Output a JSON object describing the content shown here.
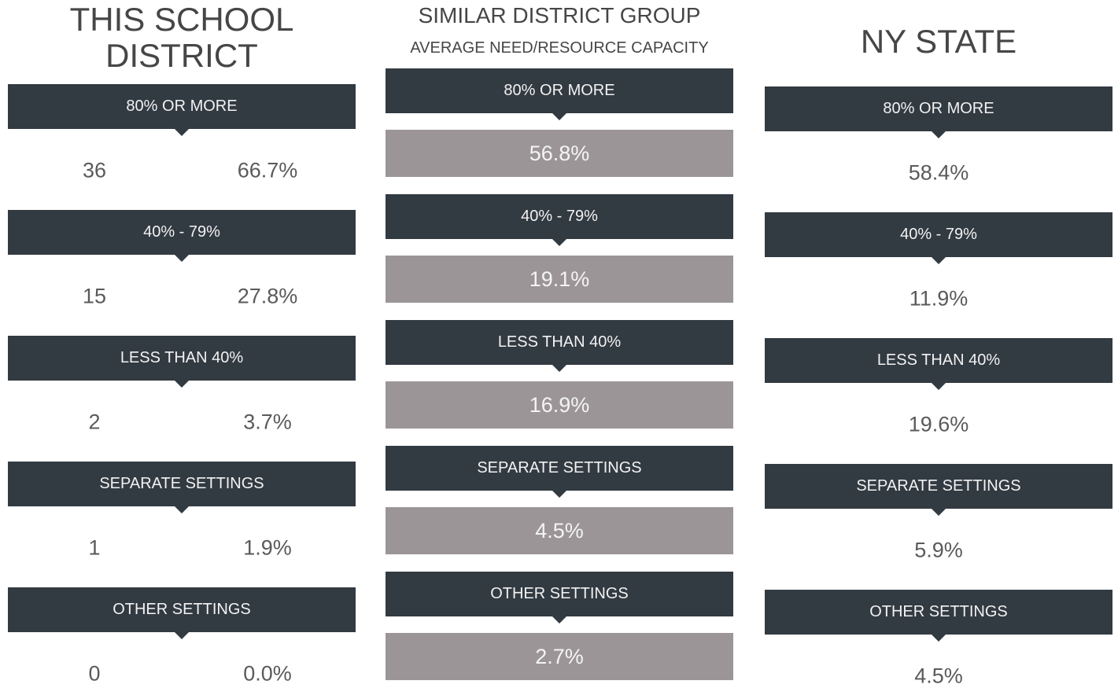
{
  "columns": [
    {
      "title": "THIS SCHOOL DISTRICT",
      "rows": [
        {
          "label": "80% OR MORE",
          "count": "36",
          "percent": "66.7%"
        },
        {
          "label": "40% - 79%",
          "count": "15",
          "percent": "27.8%"
        },
        {
          "label": "LESS THAN 40%",
          "count": "2",
          "percent": "3.7%"
        },
        {
          "label": "SEPARATE SETTINGS",
          "count": "1",
          "percent": "1.9%"
        },
        {
          "label": "OTHER SETTINGS",
          "count": "0",
          "percent": "0.0%"
        }
      ]
    },
    {
      "title": "SIMILAR DISTRICT GROUP",
      "subtitle": "AVERAGE NEED/RESOURCE CAPACITY",
      "rows": [
        {
          "label": "80% OR MORE",
          "percent": "56.8%"
        },
        {
          "label": "40% - 79%",
          "percent": "19.1%"
        },
        {
          "label": "LESS THAN 40%",
          "percent": "16.9%"
        },
        {
          "label": "SEPARATE SETTINGS",
          "percent": "4.5%"
        },
        {
          "label": "OTHER SETTINGS",
          "percent": "2.7%"
        }
      ]
    },
    {
      "title": "NY STATE",
      "rows": [
        {
          "label": "80% OR MORE",
          "percent": "58.4%"
        },
        {
          "label": "40% - 79%",
          "percent": "11.9%"
        },
        {
          "label": "LESS THAN 40%",
          "percent": "19.6%"
        },
        {
          "label": "SEPARATE SETTINGS",
          "percent": "5.9%"
        },
        {
          "label": "OTHER SETTINGS",
          "percent": "4.5%"
        }
      ]
    }
  ]
}
